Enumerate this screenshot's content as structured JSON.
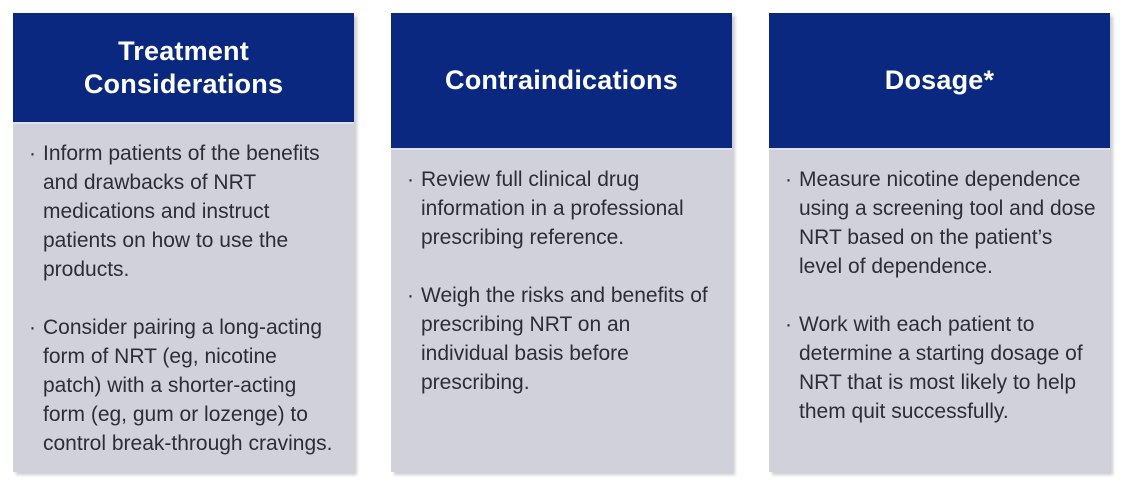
{
  "colors": {
    "header_bg": "#0a2880",
    "body_bg": "#d0d1db",
    "header_text": "#ffffff",
    "body_text": "#2d2d36",
    "page_bg": "#ffffff"
  },
  "bullet_glyph": "·",
  "cards": [
    {
      "title": "Treatment Considerations",
      "bullets": [
        "Inform patients of the benefits and drawbacks of NRT medications and instruct patients on how to use the products.",
        "Consider pairing a long-acting form of NRT (eg, nicotine patch) with a shorter-acting form (eg, gum or lozenge) to control break-through cravings."
      ]
    },
    {
      "title": "Contraindications",
      "bullets": [
        "Review full clinical drug information in a professional prescribing reference.",
        "Weigh the risks and benefits of prescribing NRT on an individual basis before prescribing."
      ]
    },
    {
      "title": "Dosage*",
      "bullets": [
        "Measure nicotine dependence using a screening tool and dose NRT based on the patient’s level of dependence.",
        "Work with each patient to determine a starting dosage of NRT that is most likely to help them quit successfully."
      ]
    }
  ]
}
